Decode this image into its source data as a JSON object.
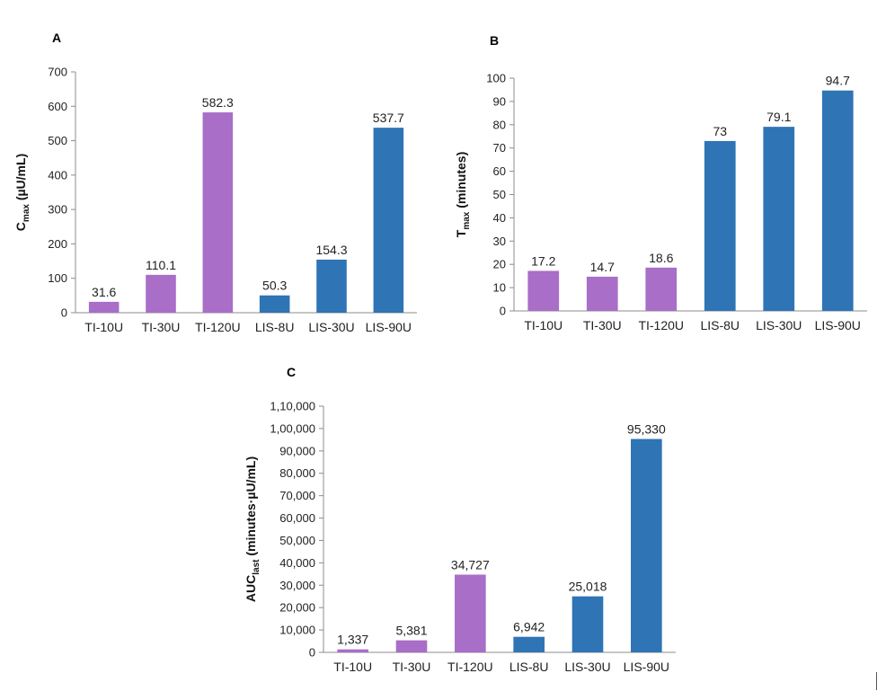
{
  "colors": {
    "ti": "#a86ec8",
    "lis": "#2f74b5",
    "axis": "#8c8c8c"
  },
  "chart_data": [
    {
      "panel": "A",
      "type": "bar",
      "categories": [
        "TI-10U",
        "TI-30U",
        "TI-120U",
        "LIS-8U",
        "LIS-30U",
        "LIS-90U"
      ],
      "values": [
        31.6,
        110.1,
        582.3,
        50.3,
        154.3,
        537.7
      ],
      "value_labels": [
        "31.6",
        "110.1",
        "582.3",
        "50.3",
        "154.3",
        "537.7"
      ],
      "bar_groups": [
        "ti",
        "ti",
        "ti",
        "lis",
        "lis",
        "lis"
      ],
      "ylabel": {
        "main": "C",
        "sub": "max",
        "rest": " (µU/mL)"
      },
      "ylim": [
        0,
        700
      ],
      "yticks": [
        0,
        100,
        200,
        300,
        400,
        500,
        600,
        700
      ],
      "ytick_labels": [
        "0",
        "100",
        "200",
        "300",
        "400",
        "500",
        "600",
        "700"
      ],
      "grid": false,
      "legend": "none"
    },
    {
      "panel": "B",
      "type": "bar",
      "categories": [
        "TI-10U",
        "TI-30U",
        "TI-120U",
        "LIS-8U",
        "LIS-30U",
        "LIS-90U"
      ],
      "values": [
        17.2,
        14.7,
        18.6,
        73,
        79.1,
        94.7
      ],
      "value_labels": [
        "17.2",
        "14.7",
        "18.6",
        "73",
        "79.1",
        "94.7"
      ],
      "bar_groups": [
        "ti",
        "ti",
        "ti",
        "lis",
        "lis",
        "lis"
      ],
      "ylabel": {
        "main": "T",
        "sub": "max",
        "rest": " (minutes)"
      },
      "ylim": [
        0,
        100
      ],
      "yticks": [
        0,
        10,
        20,
        30,
        40,
        50,
        60,
        70,
        80,
        90,
        100
      ],
      "ytick_labels": [
        "0",
        "10",
        "20",
        "30",
        "40",
        "50",
        "60",
        "70",
        "80",
        "90",
        "100"
      ],
      "grid": false,
      "legend": "none"
    },
    {
      "panel": "C",
      "type": "bar",
      "categories": [
        "TI-10U",
        "TI-30U",
        "TI-120U",
        "LIS-8U",
        "LIS-30U",
        "LIS-90U"
      ],
      "values": [
        1337,
        5381,
        34727,
        6942,
        25018,
        95330
      ],
      "value_labels": [
        "1,337",
        "5,381",
        "34,727",
        "6,942",
        "25,018",
        "95,330"
      ],
      "bar_groups": [
        "ti",
        "ti",
        "ti",
        "lis",
        "lis",
        "lis"
      ],
      "ylabel": {
        "main": "AUC",
        "sub": "last",
        "rest": " (minutes·µU/mL)"
      },
      "ylim": [
        0,
        110000
      ],
      "yticks": [
        0,
        10000,
        20000,
        30000,
        40000,
        50000,
        60000,
        70000,
        80000,
        90000,
        100000,
        110000
      ],
      "ytick_labels": [
        "0",
        "10,000",
        "20,000",
        "30,000",
        "40,000",
        "50,000",
        "60,000",
        "70,000",
        "80,000",
        "90,000",
        "1,00,000",
        "1,10,000"
      ],
      "grid": false,
      "legend": "none"
    }
  ]
}
